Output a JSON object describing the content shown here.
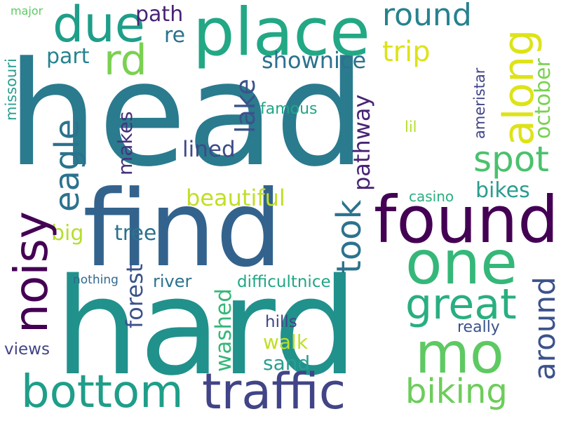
{
  "words": {
    "head": {
      "text": "head",
      "color": "#2a7b8e"
    },
    "find": {
      "text": "find",
      "color": "#33638d"
    },
    "hard": {
      "text": "hard",
      "color": "#21918c"
    },
    "found": {
      "text": "found",
      "color": "#440154"
    },
    "place": {
      "text": "place",
      "color": "#22a884"
    },
    "one": {
      "text": "one",
      "color": "#35b779"
    },
    "mo": {
      "text": "mo",
      "color": "#5ec962"
    },
    "noisy": {
      "text": "noisy",
      "color": "#440154"
    },
    "great": {
      "text": "great",
      "color": "#29af7f"
    },
    "traffic": {
      "text": "traffic",
      "color": "#414487"
    },
    "bottom": {
      "text": "bottom",
      "color": "#1f9e89"
    },
    "along": {
      "text": "along",
      "color": "#dde318"
    },
    "due": {
      "text": "due",
      "color": "#1f9e89"
    },
    "rd": {
      "text": "rd",
      "color": "#7ad151"
    },
    "biking": {
      "text": "biking",
      "color": "#6ccd5a"
    },
    "spot": {
      "text": "spot",
      "color": "#4ac16d"
    },
    "eagle": {
      "text": "eagle",
      "color": "#2c728e"
    },
    "round": {
      "text": "round",
      "color": "#26828e"
    },
    "took": {
      "text": "took",
      "color": "#2c728e"
    },
    "around": {
      "text": "around",
      "color": "#3b528b"
    },
    "lake": {
      "text": "lake",
      "color": "#3b528b"
    },
    "trip": {
      "text": "trip",
      "color": "#dde318"
    },
    "shownice": {
      "text": "shownice",
      "color": "#2c728e"
    },
    "pathway": {
      "text": "pathway",
      "color": "#482475"
    },
    "october": {
      "text": "october",
      "color": "#7ad151"
    },
    "forest": {
      "text": "forest",
      "color": "#3b528b"
    },
    "washed": {
      "text": "washed",
      "color": "#35b779"
    },
    "beautiful": {
      "text": "beautiful",
      "color": "#c0df25"
    },
    "lined": {
      "text": "lined",
      "color": "#3e4a89"
    },
    "makes": {
      "text": "makes",
      "color": "#46337e"
    },
    "tree": {
      "text": "tree",
      "color": "#2c728e"
    },
    "bikes": {
      "text": "bikes",
      "color": "#2a9d8f"
    },
    "big": {
      "text": "big",
      "color": "#b5de2b"
    },
    "part": {
      "text": "part",
      "color": "#26828e"
    },
    "path": {
      "text": "path",
      "color": "#482475"
    },
    "re": {
      "text": "re",
      "color": "#2c728e"
    },
    "walk": {
      "text": "walk",
      "color": "#c0df25"
    },
    "sand": {
      "text": "sand",
      "color": "#2a9d8f"
    },
    "difficultnice": {
      "text": "difficultnice",
      "color": "#21a685"
    },
    "river": {
      "text": "river",
      "color": "#2c728e"
    },
    "hills": {
      "text": "hills",
      "color": "#414487"
    },
    "really": {
      "text": "really",
      "color": "#3b528b"
    },
    "views": {
      "text": "views",
      "color": "#414487"
    },
    "famous": {
      "text": "famous",
      "color": "#21a685"
    },
    "casino": {
      "text": "casino",
      "color": "#2ab07f"
    },
    "lil": {
      "text": "lil",
      "color": "#b5de2b"
    },
    "ameristar": {
      "text": "ameristar",
      "color": "#414487"
    },
    "nothing": {
      "text": "nothing",
      "color": "#31688e"
    },
    "missouri": {
      "text": "missouri",
      "color": "#2a9d8f"
    },
    "major": {
      "text": "major",
      "color": "#5ec962"
    }
  }
}
